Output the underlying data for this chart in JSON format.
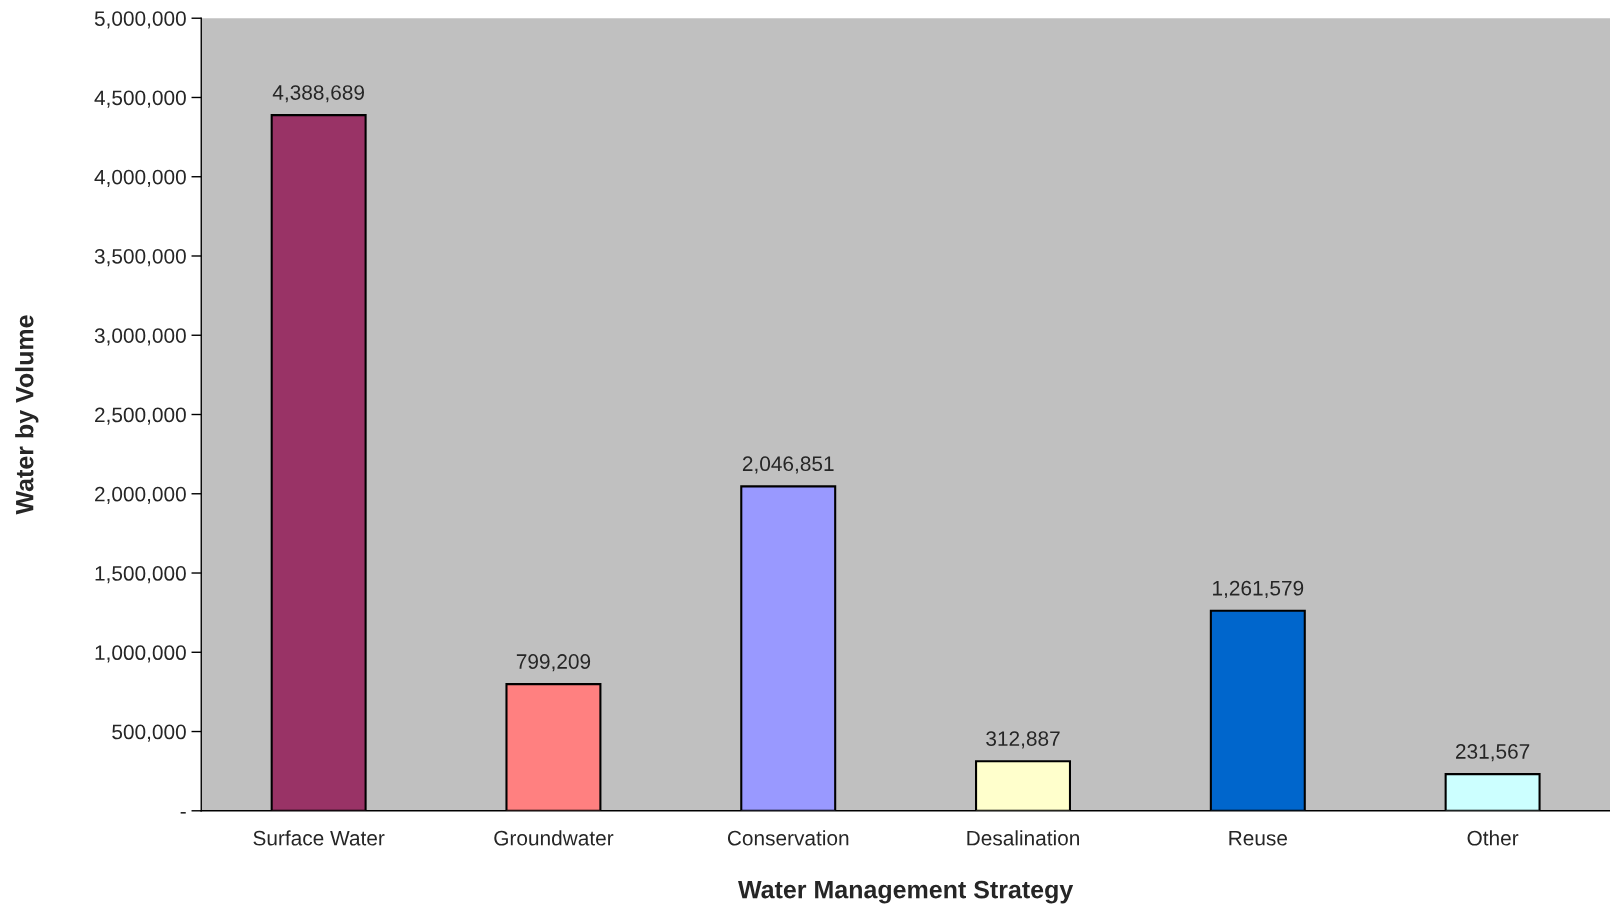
{
  "chart_data": {
    "type": "bar",
    "xlabel": "Water Management Strategy",
    "ylabel": "Water by Volume",
    "categories": [
      "Surface Water",
      "Groundwater",
      "Conservation",
      "Desalination",
      "Reuse",
      "Other"
    ],
    "values": [
      4388689,
      799209,
      2046851,
      312887,
      1261579,
      231567
    ],
    "colors": [
      "#993366",
      "#ff8080",
      "#9999ff",
      "#ffffcc",
      "#0066cc",
      "#ccffff"
    ],
    "ylim": [
      0,
      5000000
    ],
    "yticks": [
      {
        "value": 0,
        "label": "-"
      },
      {
        "value": 500000,
        "label": "500,000"
      },
      {
        "value": 1000000,
        "label": "1,000,000"
      },
      {
        "value": 1500000,
        "label": "1,500,000"
      },
      {
        "value": 2000000,
        "label": "2,000,000"
      },
      {
        "value": 2500000,
        "label": "2,500,000"
      },
      {
        "value": 3000000,
        "label": "3,000,000"
      },
      {
        "value": 3500000,
        "label": "3,500,000"
      },
      {
        "value": 4000000,
        "label": "4,000,000"
      },
      {
        "value": 4500000,
        "label": "4,500,000"
      },
      {
        "value": 5000000,
        "label": "5,000,000"
      }
    ],
    "value_labels": [
      "4,388,689",
      "799,209",
      "2,046,851",
      "312,887",
      "1,261,579",
      "231,567"
    ],
    "grid": false,
    "legend": false
  }
}
